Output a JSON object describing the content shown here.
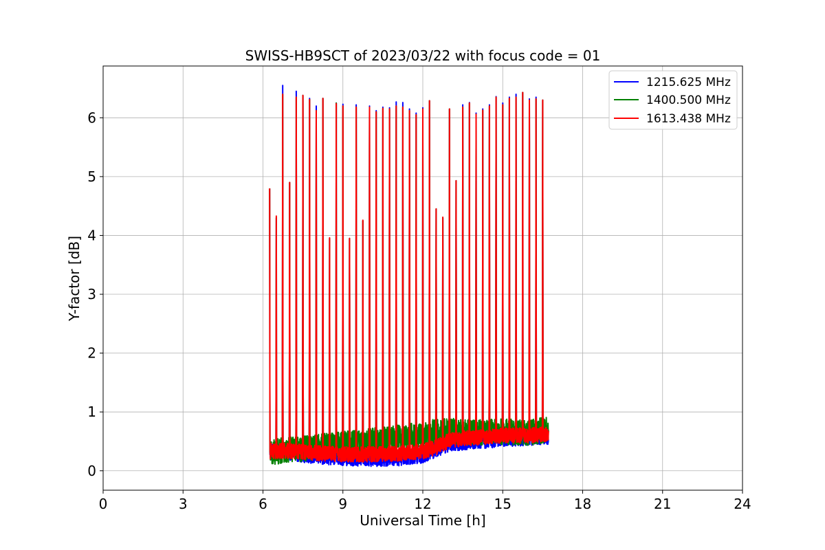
{
  "chart_data": {
    "type": "line",
    "title": "SWISS-HB9SCT of 2023/03/22 with focus code = 01",
    "xlabel": "Universal Time [h]",
    "ylabel": "Y-factor [dB]",
    "xlim": [
      0,
      24
    ],
    "ylim": [
      -0.33,
      6.88
    ],
    "xticks": [
      0,
      3,
      6,
      9,
      12,
      15,
      18,
      21,
      24
    ],
    "yticks": [
      0,
      1,
      2,
      3,
      4,
      5,
      6
    ],
    "grid": true,
    "legend_position": "top-right",
    "data_start_h": 6.25,
    "data_end_h": 16.72,
    "series": [
      {
        "name": "1215.625 MHz",
        "color": "#0000ff",
        "baseline": [
          [
            6.25,
            0.32
          ],
          [
            7.0,
            0.33
          ],
          [
            8.0,
            0.26
          ],
          [
            9.0,
            0.24
          ],
          [
            10.0,
            0.22
          ],
          [
            11.0,
            0.23
          ],
          [
            12.0,
            0.28
          ],
          [
            12.5,
            0.38
          ],
          [
            13.0,
            0.48
          ],
          [
            13.5,
            0.5
          ],
          [
            14.0,
            0.52
          ],
          [
            15.0,
            0.55
          ],
          [
            16.0,
            0.58
          ],
          [
            16.72,
            0.6
          ]
        ],
        "noise_amplitude": 0.15,
        "peaks": [
          [
            6.25,
            4.8
          ],
          [
            6.5,
            4.3
          ],
          [
            6.74,
            6.55
          ],
          [
            7.0,
            4.9
          ],
          [
            7.25,
            6.45
          ],
          [
            7.5,
            6.38
          ],
          [
            7.75,
            6.33
          ],
          [
            8.0,
            6.2
          ],
          [
            8.25,
            6.33
          ],
          [
            8.5,
            3.95
          ],
          [
            8.75,
            6.25
          ],
          [
            9.0,
            6.23
          ],
          [
            9.25,
            3.95
          ],
          [
            9.5,
            6.22
          ],
          [
            9.75,
            4.25
          ],
          [
            10.0,
            6.2
          ],
          [
            10.25,
            6.12
          ],
          [
            10.5,
            6.18
          ],
          [
            10.75,
            6.17
          ],
          [
            11.0,
            6.27
          ],
          [
            11.25,
            6.26
          ],
          [
            11.5,
            6.15
          ],
          [
            11.75,
            6.08
          ],
          [
            12.0,
            6.17
          ],
          [
            12.25,
            6.29
          ],
          [
            12.5,
            4.45
          ],
          [
            12.75,
            4.3
          ],
          [
            13.0,
            6.15
          ],
          [
            13.25,
            4.93
          ],
          [
            13.5,
            6.22
          ],
          [
            13.75,
            6.26
          ],
          [
            14.0,
            6.08
          ],
          [
            14.25,
            6.15
          ],
          [
            14.5,
            6.22
          ],
          [
            14.75,
            6.36
          ],
          [
            15.0,
            6.25
          ],
          [
            15.25,
            6.35
          ],
          [
            15.5,
            6.4
          ],
          [
            15.75,
            6.43
          ],
          [
            16.0,
            6.32
          ],
          [
            16.25,
            6.35
          ],
          [
            16.5,
            6.3
          ]
        ]
      },
      {
        "name": "1400.500 MHz",
        "color": "#008000",
        "baseline": [
          [
            6.25,
            0.32
          ],
          [
            7.0,
            0.35
          ],
          [
            8.0,
            0.4
          ],
          [
            9.0,
            0.45
          ],
          [
            10.0,
            0.5
          ],
          [
            11.0,
            0.55
          ],
          [
            12.0,
            0.62
          ],
          [
            12.5,
            0.66
          ],
          [
            13.0,
            0.68
          ],
          [
            14.0,
            0.65
          ],
          [
            15.0,
            0.66
          ],
          [
            16.0,
            0.65
          ],
          [
            16.72,
            0.7
          ]
        ],
        "noise_amplitude": 0.22,
        "peaks": [
          [
            6.25,
            4.8
          ],
          [
            6.5,
            4.3
          ],
          [
            6.74,
            6.4
          ],
          [
            7.0,
            4.9
          ],
          [
            7.25,
            6.35
          ],
          [
            7.5,
            6.38
          ],
          [
            7.75,
            6.31
          ],
          [
            8.0,
            6.12
          ],
          [
            8.25,
            6.33
          ],
          [
            8.5,
            3.95
          ],
          [
            8.75,
            6.25
          ],
          [
            9.0,
            6.2
          ],
          [
            9.25,
            3.95
          ],
          [
            9.5,
            6.18
          ],
          [
            9.75,
            4.25
          ],
          [
            10.0,
            6.18
          ],
          [
            10.25,
            6.1
          ],
          [
            10.5,
            6.16
          ],
          [
            10.75,
            6.15
          ],
          [
            11.0,
            6.2
          ],
          [
            11.25,
            6.18
          ],
          [
            11.5,
            6.12
          ],
          [
            11.75,
            6.05
          ],
          [
            12.0,
            6.15
          ],
          [
            12.25,
            6.29
          ],
          [
            12.5,
            4.45
          ],
          [
            12.75,
            4.3
          ],
          [
            13.0,
            6.15
          ],
          [
            13.25,
            4.93
          ],
          [
            13.5,
            6.18
          ],
          [
            13.75,
            6.25
          ],
          [
            14.0,
            6.06
          ],
          [
            14.25,
            6.13
          ],
          [
            14.5,
            6.2
          ],
          [
            14.75,
            6.35
          ],
          [
            15.0,
            6.22
          ],
          [
            15.25,
            6.33
          ],
          [
            15.5,
            6.35
          ],
          [
            15.75,
            6.43
          ],
          [
            16.0,
            6.3
          ],
          [
            16.25,
            6.32
          ],
          [
            16.5,
            6.3
          ]
        ]
      },
      {
        "name": "1613.438 MHz",
        "color": "#ff0000",
        "baseline": [
          [
            6.25,
            0.33
          ],
          [
            7.0,
            0.34
          ],
          [
            8.0,
            0.3
          ],
          [
            9.0,
            0.28
          ],
          [
            10.0,
            0.28
          ],
          [
            11.0,
            0.29
          ],
          [
            12.0,
            0.33
          ],
          [
            12.5,
            0.4
          ],
          [
            13.0,
            0.52
          ],
          [
            13.5,
            0.55
          ],
          [
            14.0,
            0.56
          ],
          [
            15.0,
            0.6
          ],
          [
            16.0,
            0.6
          ],
          [
            16.72,
            0.63
          ]
        ],
        "noise_amplitude": 0.13,
        "peaks": [
          [
            6.25,
            4.8
          ],
          [
            6.5,
            4.33
          ],
          [
            6.74,
            6.4
          ],
          [
            7.0,
            4.9
          ],
          [
            7.25,
            6.35
          ],
          [
            7.5,
            6.38
          ],
          [
            7.75,
            6.31
          ],
          [
            8.0,
            6.12
          ],
          [
            8.25,
            6.33
          ],
          [
            8.5,
            3.96
          ],
          [
            8.75,
            6.24
          ],
          [
            9.0,
            6.2
          ],
          [
            9.25,
            3.95
          ],
          [
            9.5,
            6.18
          ],
          [
            9.75,
            4.26
          ],
          [
            10.0,
            6.18
          ],
          [
            10.25,
            6.1
          ],
          [
            10.5,
            6.16
          ],
          [
            10.75,
            6.15
          ],
          [
            11.0,
            6.2
          ],
          [
            11.25,
            6.18
          ],
          [
            11.5,
            6.12
          ],
          [
            11.75,
            6.05
          ],
          [
            12.0,
            6.15
          ],
          [
            12.25,
            6.29
          ],
          [
            12.5,
            4.45
          ],
          [
            12.75,
            4.31
          ],
          [
            13.0,
            6.15
          ],
          [
            13.25,
            4.93
          ],
          [
            13.5,
            6.18
          ],
          [
            13.75,
            6.25
          ],
          [
            14.0,
            6.06
          ],
          [
            14.25,
            6.13
          ],
          [
            14.5,
            6.2
          ],
          [
            14.75,
            6.35
          ],
          [
            15.0,
            6.22
          ],
          [
            15.25,
            6.33
          ],
          [
            15.5,
            6.35
          ],
          [
            15.75,
            6.43
          ],
          [
            16.0,
            6.3
          ],
          [
            16.25,
            6.32
          ],
          [
            16.5,
            6.3
          ]
        ]
      }
    ]
  }
}
